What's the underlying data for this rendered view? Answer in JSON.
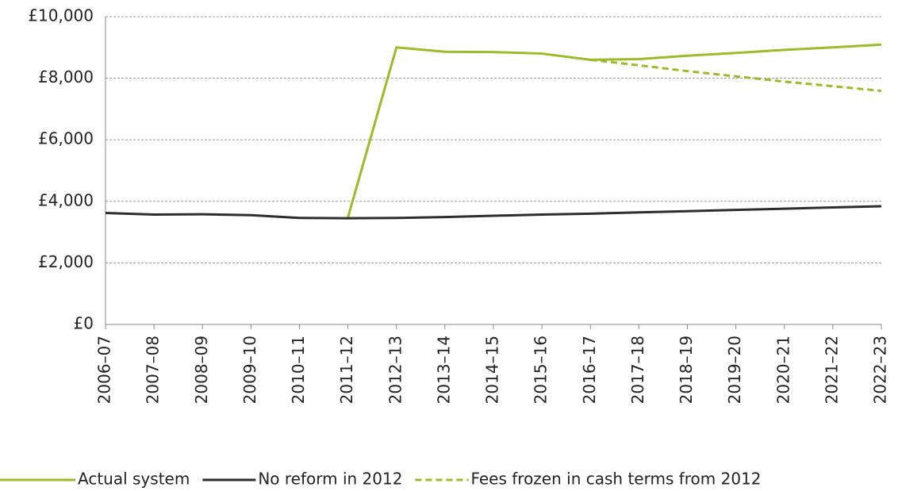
{
  "chart_data": {
    "type": "line",
    "categories": [
      "2006–07",
      "2007–08",
      "2008–09",
      "2009–10",
      "2010–11",
      "2011–12",
      "2012–13",
      "2013–14",
      "2014–15",
      "2015–16",
      "2016–17",
      "2017–18",
      "2018–19",
      "2019–20",
      "2020–21",
      "2021–22",
      "2022–23"
    ],
    "series": [
      {
        "name": "Actual system",
        "color": "#9bbb28",
        "dashed": false,
        "values": [
          null,
          null,
          null,
          null,
          null,
          3480,
          9000,
          8860,
          8850,
          8800,
          8600,
          8620,
          8730,
          8820,
          8920,
          9000,
          9090
        ]
      },
      {
        "name": "No reform in 2012",
        "color": "#2d2d2d",
        "dashed": false,
        "values": [
          3620,
          3570,
          3580,
          3550,
          3460,
          3450,
          3460,
          3490,
          3530,
          3570,
          3600,
          3640,
          3680,
          3720,
          3760,
          3800,
          3840
        ]
      },
      {
        "name": "Fees frozen in cash terms from 2012",
        "color": "#9bbb28",
        "dashed": true,
        "values": [
          null,
          null,
          null,
          null,
          null,
          null,
          null,
          null,
          null,
          null,
          8600,
          8420,
          8230,
          8060,
          7890,
          7740,
          7590
        ]
      }
    ],
    "ylim": [
      0,
      10000
    ],
    "yticks": [
      {
        "value": 0,
        "label": "£0"
      },
      {
        "value": 2000,
        "label": "£2,000"
      },
      {
        "value": 4000,
        "label": "£4,000"
      },
      {
        "value": 6000,
        "label": "£6,000"
      },
      {
        "value": 8000,
        "label": "£8,000"
      },
      {
        "value": 10000,
        "label": "£10,000"
      }
    ],
    "grid": true,
    "legend": "bottom"
  }
}
